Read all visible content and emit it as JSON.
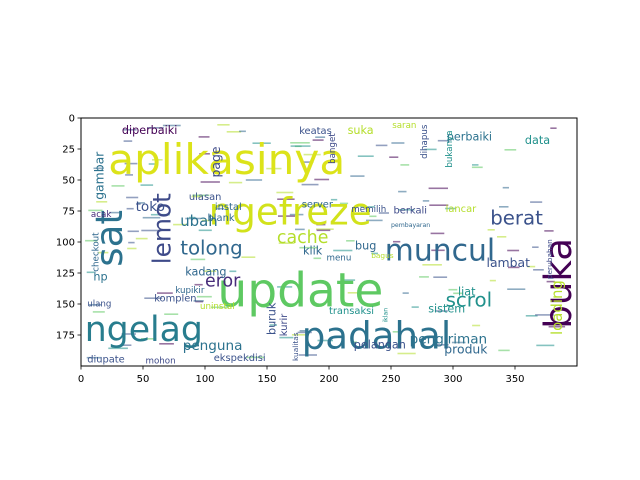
{
  "chart_data": {
    "type": "wordcloud",
    "title": "",
    "xlabel": "",
    "ylabel": "",
    "xlim": [
      0,
      400
    ],
    "ylim": [
      200,
      0
    ],
    "grid": false,
    "xticks": [
      {
        "value": 0,
        "label": "0"
      },
      {
        "value": 50,
        "label": "50"
      },
      {
        "value": 100,
        "label": "100"
      },
      {
        "value": 150,
        "label": "150"
      },
      {
        "value": 200,
        "label": "200"
      },
      {
        "value": 250,
        "label": "250"
      },
      {
        "value": 300,
        "label": "300"
      },
      {
        "value": 350,
        "label": "350"
      }
    ],
    "yticks": [
      {
        "value": 0,
        "label": "0"
      },
      {
        "value": 25,
        "label": "25"
      },
      {
        "value": 50,
        "label": "50"
      },
      {
        "value": 75,
        "label": "75"
      },
      {
        "value": 100,
        "label": "100"
      },
      {
        "value": 125,
        "label": "125"
      },
      {
        "value": 150,
        "label": "150"
      },
      {
        "value": 175,
        "label": "175"
      }
    ],
    "words": [
      {
        "text": "aplikasinya",
        "x": 22,
        "y": 45,
        "size": 34,
        "color": "#dce319",
        "rotate": 0
      },
      {
        "text": "update",
        "x": 110,
        "y": 152,
        "size": 38,
        "color": "#5ec962",
        "rotate": 0
      },
      {
        "text": "ngefreze",
        "x": 103,
        "y": 86,
        "size": 30,
        "color": "#d2e21b",
        "rotate": 0
      },
      {
        "text": "padahal",
        "x": 178,
        "y": 186,
        "size": 30,
        "color": "#2c728e",
        "rotate": 0
      },
      {
        "text": "ngelag",
        "x": 3,
        "y": 180,
        "size": 28,
        "color": "#287d8e",
        "rotate": 0
      },
      {
        "text": "sat",
        "x": 33,
        "y": 120,
        "size": 30,
        "color": "#2c728e",
        "rotate": -90
      },
      {
        "text": "buka",
        "x": 395,
        "y": 170,
        "size": 30,
        "color": "#440154",
        "rotate": -90
      },
      {
        "text": "muncul",
        "x": 245,
        "y": 115,
        "size": 24,
        "color": "#31688e",
        "rotate": 0
      },
      {
        "text": "lemot",
        "x": 72,
        "y": 118,
        "size": 20,
        "color": "#3e4a89",
        "rotate": -90
      },
      {
        "text": "berat",
        "x": 330,
        "y": 86,
        "size": 16,
        "color": "#3b528b",
        "rotate": 0
      },
      {
        "text": "tolong",
        "x": 80,
        "y": 110,
        "size": 16,
        "color": "#31688e",
        "rotate": 0
      },
      {
        "text": "cache",
        "x": 158,
        "y": 101,
        "size": 14,
        "color": "#b5de2b",
        "rotate": 0
      },
      {
        "text": "scrol",
        "x": 294,
        "y": 152,
        "size": 16,
        "color": "#21918c",
        "rotate": 0
      },
      {
        "text": "eror",
        "x": 100,
        "y": 136,
        "size": 14,
        "color": "#472c7a",
        "rotate": 0
      },
      {
        "text": "loading",
        "x": 388,
        "y": 175,
        "size": 12,
        "color": "#b5de2b",
        "rotate": -90
      },
      {
        "text": "ubah",
        "x": 80,
        "y": 87,
        "size": 12,
        "color": "#2c728e",
        "rotate": 0
      },
      {
        "text": "toko",
        "x": 44,
        "y": 75,
        "size": 11,
        "color": "#3b528b",
        "rotate": 0
      },
      {
        "text": "lambat",
        "x": 327,
        "y": 120,
        "size": 10,
        "color": "#3b528b",
        "rotate": 0
      },
      {
        "text": "page",
        "x": 112,
        "y": 48,
        "size": 10,
        "color": "#3e4a89",
        "rotate": -90
      },
      {
        "text": "gambar",
        "x": 18,
        "y": 66,
        "size": 10,
        "color": "#2c728e",
        "rotate": -90
      },
      {
        "text": "diperbaiki",
        "x": 33,
        "y": 13,
        "size": 9,
        "color": "#440154",
        "rotate": 0
      },
      {
        "text": "perbaiki",
        "x": 295,
        "y": 18,
        "size": 9,
        "color": "#2c728e",
        "rotate": 0
      },
      {
        "text": "suka",
        "x": 215,
        "y": 13,
        "size": 9,
        "color": "#b5de2b",
        "rotate": 0
      },
      {
        "text": "data",
        "x": 358,
        "y": 21,
        "size": 9,
        "color": "#21918c",
        "rotate": 0
      },
      {
        "text": "kadang",
        "x": 84,
        "y": 127,
        "size": 9,
        "color": "#31688e",
        "rotate": 0
      },
      {
        "text": "klik",
        "x": 179,
        "y": 110,
        "size": 9,
        "color": "#31688e",
        "rotate": 0
      },
      {
        "text": "hp",
        "x": 10,
        "y": 131,
        "size": 9,
        "color": "#2c728e",
        "rotate": 0
      },
      {
        "text": "penguna",
        "x": 82,
        "y": 187,
        "size": 11,
        "color": "#2c728e",
        "rotate": 0
      },
      {
        "text": "pengiriman",
        "x": 265,
        "y": 182,
        "size": 11,
        "color": "#2c728e",
        "rotate": 0
      },
      {
        "text": "produk",
        "x": 293,
        "y": 190,
        "size": 10,
        "color": "#31688e",
        "rotate": 0
      },
      {
        "text": "pelangan",
        "x": 220,
        "y": 186,
        "size": 9,
        "color": "#3b528b",
        "rotate": 0
      },
      {
        "text": "sistem",
        "x": 280,
        "y": 157,
        "size": 9,
        "color": "#21918c",
        "rotate": 0
      },
      {
        "text": "liat",
        "x": 304,
        "y": 143,
        "size": 9,
        "color": "#21918c",
        "rotate": 0
      },
      {
        "text": "bug",
        "x": 221,
        "y": 106,
        "size": 9,
        "color": "#31688e",
        "rotate": 0
      },
      {
        "text": "buruk",
        "x": 157,
        "y": 175,
        "size": 9,
        "color": "#3b528b",
        "rotate": -90
      },
      {
        "text": "kurir",
        "x": 166,
        "y": 176,
        "size": 8,
        "color": "#3e4a89",
        "rotate": -90
      },
      {
        "text": "ekspekdisi",
        "x": 107,
        "y": 196,
        "size": 8,
        "color": "#3b528b",
        "rotate": 0
      },
      {
        "text": "transaksi",
        "x": 200,
        "y": 158,
        "size": 8,
        "color": "#21918c",
        "rotate": 0
      },
      {
        "text": "komplen",
        "x": 59,
        "y": 148,
        "size": 8,
        "color": "#3b528b",
        "rotate": 0
      },
      {
        "text": "ulasan",
        "x": 87,
        "y": 66,
        "size": 8,
        "color": "#3b528b",
        "rotate": 0
      },
      {
        "text": "instal",
        "x": 108,
        "y": 74,
        "size": 8,
        "color": "#31688e",
        "rotate": 0
      },
      {
        "text": "server",
        "x": 178,
        "y": 72,
        "size": 8,
        "color": "#31688e",
        "rotate": 0
      },
      {
        "text": "berkali",
        "x": 252,
        "y": 77,
        "size": 8,
        "color": "#3e4a89",
        "rotate": 0
      },
      {
        "text": "lancar",
        "x": 294,
        "y": 76,
        "size": 8,
        "color": "#b5de2b",
        "rotate": 0
      },
      {
        "text": "bukanya",
        "x": 299,
        "y": 40,
        "size": 7,
        "color": "#21918c",
        "rotate": -90
      },
      {
        "text": "dihapus",
        "x": 279,
        "y": 33,
        "size": 7,
        "color": "#3b528b",
        "rotate": -90
      },
      {
        "text": "keatas",
        "x": 176,
        "y": 13,
        "size": 8,
        "color": "#3b528b",
        "rotate": 0
      },
      {
        "text": "saran",
        "x": 251,
        "y": 8,
        "size": 7,
        "color": "#b5de2b",
        "rotate": 0
      },
      {
        "text": "banget",
        "x": 205,
        "y": 37,
        "size": 7,
        "color": "#3e4a89",
        "rotate": -90
      },
      {
        "text": "memilih",
        "x": 218,
        "y": 76,
        "size": 7,
        "color": "#3b528b",
        "rotate": 0
      },
      {
        "text": "blank",
        "x": 102,
        "y": 83,
        "size": 8,
        "color": "#31688e",
        "rotate": 0
      },
      {
        "text": "acak",
        "x": 8,
        "y": 80,
        "size": 7,
        "color": "#472c7a",
        "rotate": 0
      },
      {
        "text": "menu",
        "x": 198,
        "y": 115,
        "size": 7,
        "color": "#31688e",
        "rotate": 0
      },
      {
        "text": "kupikir",
        "x": 76,
        "y": 141,
        "size": 7,
        "color": "#31688e",
        "rotate": 0
      },
      {
        "text": "ulang",
        "x": 5,
        "y": 152,
        "size": 7,
        "color": "#3b528b",
        "rotate": 0
      },
      {
        "text": "checkout",
        "x": 14,
        "y": 124,
        "size": 7,
        "color": "#31688e",
        "rotate": -90
      },
      {
        "text": "diupate",
        "x": 5,
        "y": 197,
        "size": 8,
        "color": "#3b528b",
        "rotate": 0
      },
      {
        "text": "mohon",
        "x": 52,
        "y": 198,
        "size": 7,
        "color": "#3e4a89",
        "rotate": 0
      },
      {
        "text": "uninstal",
        "x": 96,
        "y": 154,
        "size": 7,
        "color": "#b5de2b",
        "rotate": 0
      },
      {
        "text": "kualitas",
        "x": 175,
        "y": 196,
        "size": 6,
        "color": "#3b528b",
        "rotate": -90
      },
      {
        "text": "bagus",
        "x": 234,
        "y": 113,
        "size": 6,
        "color": "#b5de2b",
        "rotate": 0
      },
      {
        "text": "perubahan",
        "x": 380,
        "y": 130,
        "size": 6,
        "color": "#3e4a89",
        "rotate": -90
      },
      {
        "text": "pembayaran",
        "x": 250,
        "y": 88,
        "size": 5,
        "color": "#31688e",
        "rotate": 0
      },
      {
        "text": "iklan",
        "x": 247,
        "y": 165,
        "size": 5,
        "color": "#21918c",
        "rotate": -90
      }
    ]
  }
}
